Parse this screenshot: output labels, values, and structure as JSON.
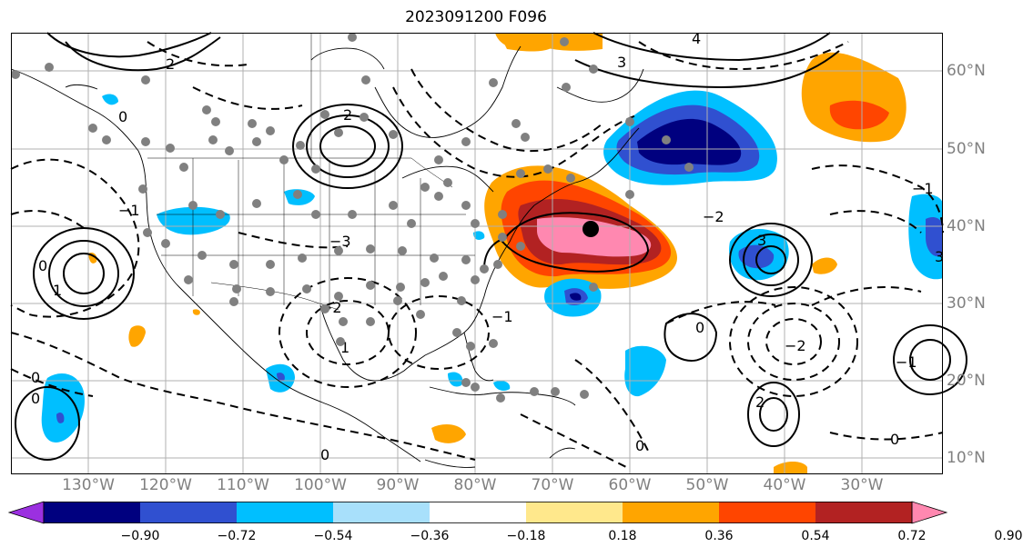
{
  "title": "2023091200 F096",
  "lon_labels": [
    "130°W",
    "120°W",
    "110°W",
    "100°W",
    "90°W",
    "80°W",
    "70°W",
    "60°W",
    "50°W",
    "40°W",
    "30°W"
  ],
  "lat_labels": [
    "60°N",
    "50°N",
    "40°N",
    "30°N",
    "20°N",
    "10°N"
  ],
  "colorbar": {
    "ticks": [
      "−0.90",
      "−0.72",
      "−0.54",
      "−0.36",
      "−0.18",
      "0.18",
      "0.36",
      "0.54",
      "0.72",
      "0.90"
    ],
    "colors": [
      "#9b30e0",
      "#00007f",
      "#3050d0",
      "#00bfff",
      "#a8e0fb",
      "#ffffff",
      "#ffe88c",
      "#ffa500",
      "#ff4500",
      "#b22222",
      "#ff88b0"
    ]
  },
  "contour_labels": [
    "0",
    "0",
    "0",
    "0",
    "0",
    "0",
    "0",
    "0",
    "−1",
    "−1",
    "−1",
    "−1",
    "1",
    "1",
    "−2",
    "−2",
    "−2",
    "2",
    "2",
    "2",
    "−3",
    "3",
    "3",
    "3",
    "4"
  ],
  "palette": {
    "grid": "#b0b0b0",
    "marker": "#808080",
    "center": "#000000"
  }
}
